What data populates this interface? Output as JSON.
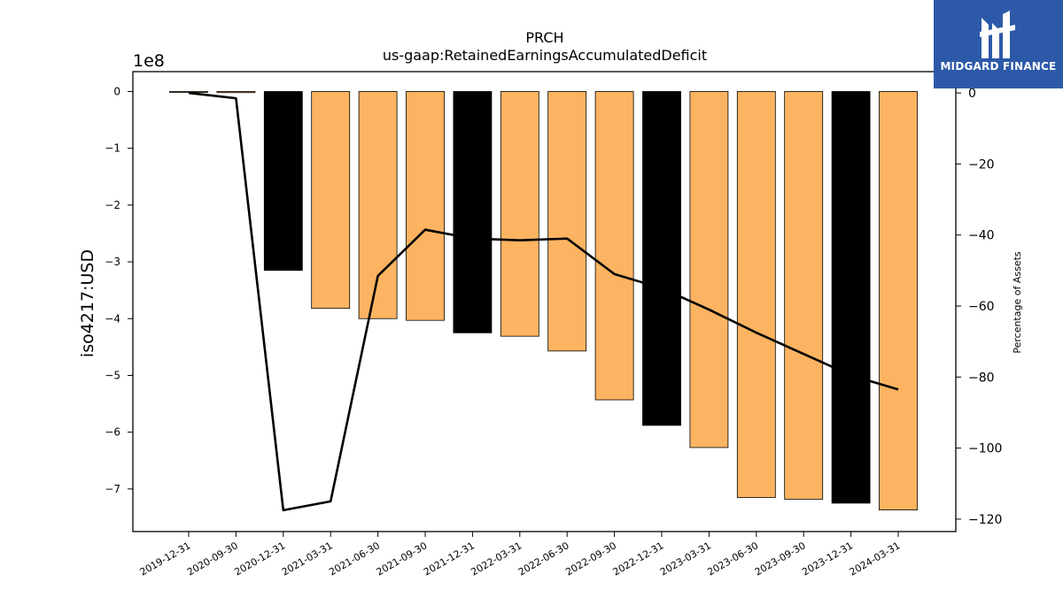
{
  "brand": {
    "name": "MIDGARD FINANCE",
    "bg": "#2d5aa8",
    "icon": "midgard-logo-icon"
  },
  "chart_data": {
    "type": "bar",
    "title": "PRCH",
    "subtitle": "us-gaap:RetainedEarningsAccumulatedDeficit",
    "ylabel": "iso4217:USD",
    "y2label": "Percentage of Assets",
    "y_scale_label": "1e8",
    "categories": [
      "2019-12-31",
      "2020-09-30",
      "2020-12-31",
      "2021-03-31",
      "2021-06-30",
      "2021-09-30",
      "2021-12-31",
      "2022-03-31",
      "2022-06-30",
      "2022-09-30",
      "2022-12-31",
      "2023-03-31",
      "2023-06-30",
      "2023-09-30",
      "2023-12-31",
      "2024-03-31"
    ],
    "values": [
      -0.01,
      -0.02,
      -3.15,
      -3.82,
      -4.0,
      -4.03,
      -4.25,
      -4.31,
      -4.57,
      -5.43,
      -5.88,
      -6.27,
      -7.15,
      -7.18,
      -7.25,
      -7.37
    ],
    "bar_colors": [
      "#fdb462",
      "#fdb462",
      "#000000",
      "#fdb462",
      "#fdb462",
      "#fdb462",
      "#000000",
      "#fdb462",
      "#fdb462",
      "#fdb462",
      "#000000",
      "#fdb462",
      "#fdb462",
      "#fdb462",
      "#000000",
      "#fdb462"
    ],
    "line_series": [
      0,
      -1.5,
      -117.5,
      -115,
      -51.5,
      -38.5,
      -41,
      -41.5,
      -41,
      -51,
      -55,
      -61,
      -67.5,
      -73.5,
      -79.5,
      -83.5
    ],
    "ylim": [
      -7.75,
      0.35
    ],
    "yticks": [
      0,
      -1,
      -2,
      -3,
      -4,
      -5,
      -6,
      -7
    ],
    "y2lim": [
      -123.5,
      6
    ],
    "y2ticks": [
      0,
      -20,
      -40,
      -60,
      -80,
      -100,
      -120
    ],
    "colors": {
      "orange": "#fdb462",
      "black": "#000000"
    }
  }
}
